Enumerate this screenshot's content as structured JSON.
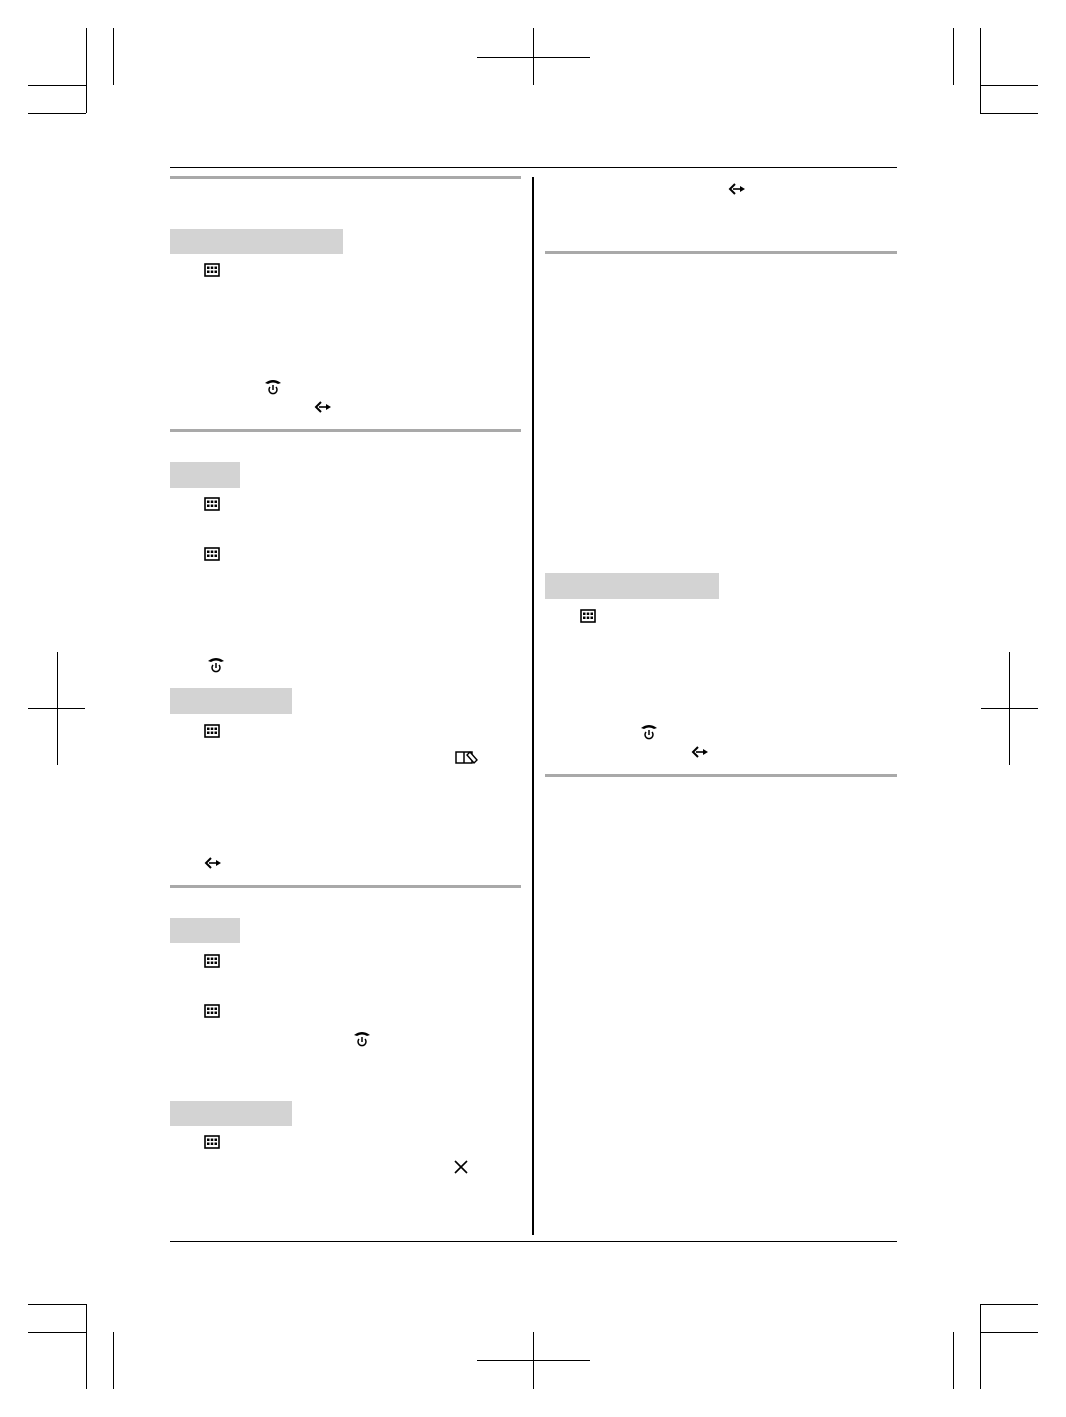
{
  "icons": {
    "menu": "menu-grid-icon",
    "off": "off-hook-power-icon",
    "back": "back-arrow-icon",
    "phonebook": "phonebook-edit-icon",
    "delete": "close-x-icon"
  }
}
